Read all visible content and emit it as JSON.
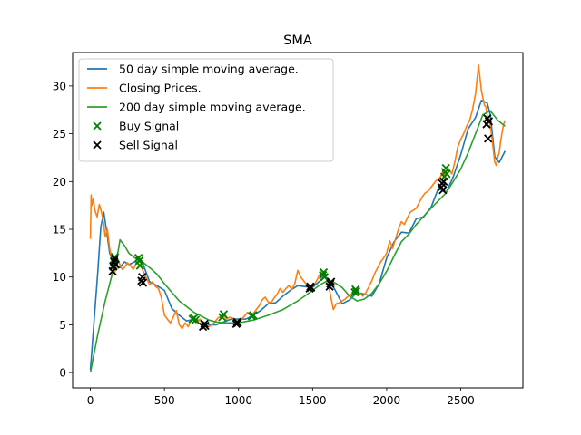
{
  "chart_data": {
    "type": "line",
    "title": "SMA",
    "xlabel": "",
    "ylabel": "",
    "xlim": [
      -120,
      2920
    ],
    "ylim": [
      -1.6,
      33.5
    ],
    "xticks": [
      0,
      500,
      1000,
      1500,
      2000,
      2500
    ],
    "yticks": [
      0,
      5,
      10,
      15,
      20,
      25,
      30
    ],
    "grid": false,
    "legend_position": "top-left",
    "series": [
      {
        "name": "50 day simple moving average.",
        "kind": "line",
        "color": "#1f77b4",
        "x": [
          0,
          25,
          50,
          70,
          90,
          110,
          130,
          150,
          175,
          200,
          230,
          260,
          300,
          350,
          400,
          450,
          500,
          550,
          600,
          650,
          700,
          750,
          800,
          850,
          900,
          950,
          1000,
          1050,
          1100,
          1150,
          1200,
          1250,
          1300,
          1350,
          1400,
          1450,
          1500,
          1550,
          1580,
          1600,
          1650,
          1700,
          1750,
          1800,
          1850,
          1900,
          1950,
          2000,
          2050,
          2100,
          2150,
          2200,
          2250,
          2300,
          2350,
          2400,
          2450,
          2500,
          2550,
          2600,
          2640,
          2680,
          2700,
          2730,
          2760,
          2800
        ],
        "y": [
          0.3,
          5.5,
          10.5,
          15.2,
          16.8,
          14.8,
          12.5,
          11.8,
          11.3,
          11.0,
          11.6,
          11.3,
          11.6,
          11.6,
          9.5,
          9.1,
          8.6,
          6.7,
          6.0,
          5.4,
          5.6,
          5.4,
          5.0,
          5.0,
          5.3,
          5.6,
          5.6,
          5.6,
          6.0,
          6.5,
          7.2,
          7.3,
          8.0,
          8.6,
          9.1,
          9.0,
          8.9,
          9.6,
          10.1,
          9.9,
          8.7,
          7.2,
          7.6,
          8.4,
          8.2,
          8.0,
          9.3,
          12.0,
          13.7,
          14.7,
          14.6,
          16.1,
          16.3,
          17.3,
          19.3,
          18.8,
          20.5,
          22.8,
          25.5,
          26.7,
          28.5,
          28.2,
          27.0,
          22.6,
          22.0,
          23.2
        ]
      },
      {
        "name": "Closing Prices.",
        "kind": "line",
        "color": "#ff7f0e",
        "x": [
          0,
          5,
          10,
          20,
          30,
          45,
          60,
          75,
          90,
          100,
          115,
          130,
          150,
          165,
          180,
          200,
          215,
          230,
          250,
          270,
          290,
          310,
          330,
          345,
          360,
          380,
          400,
          420,
          440,
          460,
          480,
          500,
          520,
          540,
          560,
          580,
          600,
          620,
          640,
          660,
          680,
          700,
          720,
          740,
          760,
          780,
          800,
          820,
          840,
          860,
          880,
          900,
          920,
          940,
          960,
          980,
          1000,
          1020,
          1040,
          1060,
          1080,
          1100,
          1120,
          1140,
          1160,
          1180,
          1200,
          1220,
          1240,
          1260,
          1280,
          1300,
          1320,
          1340,
          1360,
          1380,
          1400,
          1420,
          1440,
          1460,
          1480,
          1500,
          1520,
          1540,
          1560,
          1580,
          1600,
          1620,
          1640,
          1660,
          1680,
          1700,
          1720,
          1740,
          1760,
          1780,
          1800,
          1820,
          1840,
          1860,
          1880,
          1900,
          1920,
          1940,
          1960,
          1980,
          2000,
          2020,
          2040,
          2060,
          2080,
          2100,
          2120,
          2140,
          2160,
          2180,
          2200,
          2220,
          2240,
          2260,
          2280,
          2300,
          2320,
          2340,
          2360,
          2380,
          2400,
          2420,
          2440,
          2460,
          2480,
          2500,
          2520,
          2540,
          2560,
          2580,
          2600,
          2620,
          2640,
          2660,
          2670,
          2680,
          2690,
          2700,
          2710,
          2720,
          2730,
          2740,
          2750,
          2760,
          2770,
          2780,
          2790,
          2800
        ],
        "y": [
          14.0,
          18.6,
          17.5,
          18.2,
          17.0,
          16.3,
          17.6,
          16.8,
          15.5,
          14.2,
          15.0,
          13.0,
          11.5,
          10.5,
          12.0,
          11.3,
          10.8,
          11.0,
          11.5,
          11.2,
          10.8,
          11.5,
          12.2,
          11.0,
          10.5,
          9.8,
          9.2,
          9.5,
          9.0,
          8.8,
          7.8,
          6.0,
          5.6,
          5.2,
          5.8,
          6.5,
          5.0,
          4.6,
          5.2,
          4.8,
          5.5,
          5.7,
          5.2,
          5.6,
          4.9,
          5.1,
          4.8,
          5.0,
          5.3,
          5.7,
          5.9,
          6.0,
          5.6,
          5.8,
          5.7,
          5.3,
          5.2,
          5.6,
          5.9,
          6.3,
          6.0,
          6.2,
          6.6,
          7.0,
          7.6,
          7.9,
          7.4,
          7.3,
          7.8,
          8.2,
          8.8,
          8.4,
          8.8,
          9.1,
          8.7,
          9.3,
          10.7,
          10.0,
          9.6,
          9.2,
          8.8,
          8.9,
          9.4,
          10.0,
          10.6,
          10.2,
          9.6,
          8.2,
          6.6,
          7.2,
          7.3,
          7.5,
          7.7,
          8.0,
          8.2,
          8.4,
          8.6,
          8.3,
          8.0,
          8.4,
          9.0,
          9.6,
          10.4,
          11.0,
          11.6,
          12.0,
          12.5,
          13.8,
          13.0,
          14.0,
          15.0,
          15.8,
          15.5,
          16.2,
          16.8,
          17.0,
          17.2,
          17.8,
          18.4,
          18.8,
          19.0,
          19.4,
          19.8,
          20.2,
          20.4,
          21.0,
          20.6,
          21.3,
          20.8,
          22.0,
          23.6,
          24.4,
          25.0,
          25.8,
          26.4,
          27.5,
          29.2,
          32.2,
          29.5,
          28.0,
          27.8,
          26.8,
          26.6,
          25.8,
          24.8,
          23.3,
          22.0,
          21.7,
          22.5,
          23.0,
          24.2,
          25.2,
          26.0,
          26.4
        ]
      },
      {
        "name": "200 day simple moving average.",
        "kind": "line",
        "color": "#2ca02c",
        "x": [
          0,
          50,
          100,
          150,
          180,
          200,
          230,
          260,
          300,
          350,
          400,
          450,
          500,
          550,
          600,
          650,
          700,
          750,
          800,
          850,
          900,
          1000,
          1100,
          1200,
          1300,
          1400,
          1500,
          1550,
          1600,
          1650,
          1700,
          1750,
          1800,
          1850,
          1900,
          1950,
          2000,
          2050,
          2100,
          2150,
          2200,
          2300,
          2400,
          2450,
          2500,
          2550,
          2600,
          2650,
          2700,
          2750,
          2800
        ],
        "y": [
          0.0,
          4.0,
          7.5,
          10.5,
          12.0,
          13.9,
          13.3,
          12.5,
          12.0,
          11.6,
          11.0,
          10.3,
          9.3,
          8.4,
          7.5,
          6.9,
          6.3,
          5.9,
          5.5,
          5.3,
          5.2,
          5.2,
          5.5,
          6.0,
          6.6,
          7.5,
          8.6,
          9.2,
          9.6,
          9.4,
          8.9,
          8.0,
          7.5,
          7.7,
          8.3,
          9.3,
          10.6,
          12.2,
          13.7,
          14.5,
          15.5,
          17.2,
          18.8,
          20.0,
          21.3,
          23.0,
          25.0,
          27.0,
          27.4,
          26.4,
          25.8
        ]
      },
      {
        "name": "Buy Signal",
        "kind": "marker",
        "marker": "x",
        "color": "#008000",
        "x": [
          155,
          160,
          165,
          325,
          330,
          335,
          690,
          700,
          710,
          890,
          900,
          1090,
          1100,
          1570,
          1575,
          1580,
          1785,
          1790,
          1795,
          2390,
          2395,
          2400,
          2405
        ],
        "y": [
          11.2,
          11.7,
          12.1,
          12.0,
          11.7,
          11.2,
          5.6,
          5.7,
          5.5,
          5.8,
          6.1,
          5.9,
          6.0,
          10.2,
          10.5,
          10.0,
          8.4,
          8.7,
          8.5,
          20.5,
          21.0,
          21.4,
          20.8
        ]
      },
      {
        "name": "Sell Signal",
        "kind": "marker",
        "marker": "x",
        "color": "#000000",
        "x": [
          150,
          155,
          160,
          165,
          170,
          345,
          350,
          355,
          760,
          770,
          775,
          985,
          990,
          995,
          1480,
          1485,
          1490,
          1615,
          1620,
          1625,
          2370,
          2375,
          2380,
          2385,
          2675,
          2680,
          2685,
          2690
        ],
        "y": [
          10.6,
          11.1,
          11.6,
          11.9,
          11.3,
          9.6,
          10.0,
          9.4,
          4.8,
          5.1,
          4.9,
          5.1,
          5.3,
          5.2,
          8.8,
          9.0,
          8.9,
          9.0,
          9.3,
          9.5,
          19.4,
          19.8,
          19.1,
          20.0,
          26.0,
          26.6,
          24.5,
          26.3
        ]
      }
    ]
  }
}
